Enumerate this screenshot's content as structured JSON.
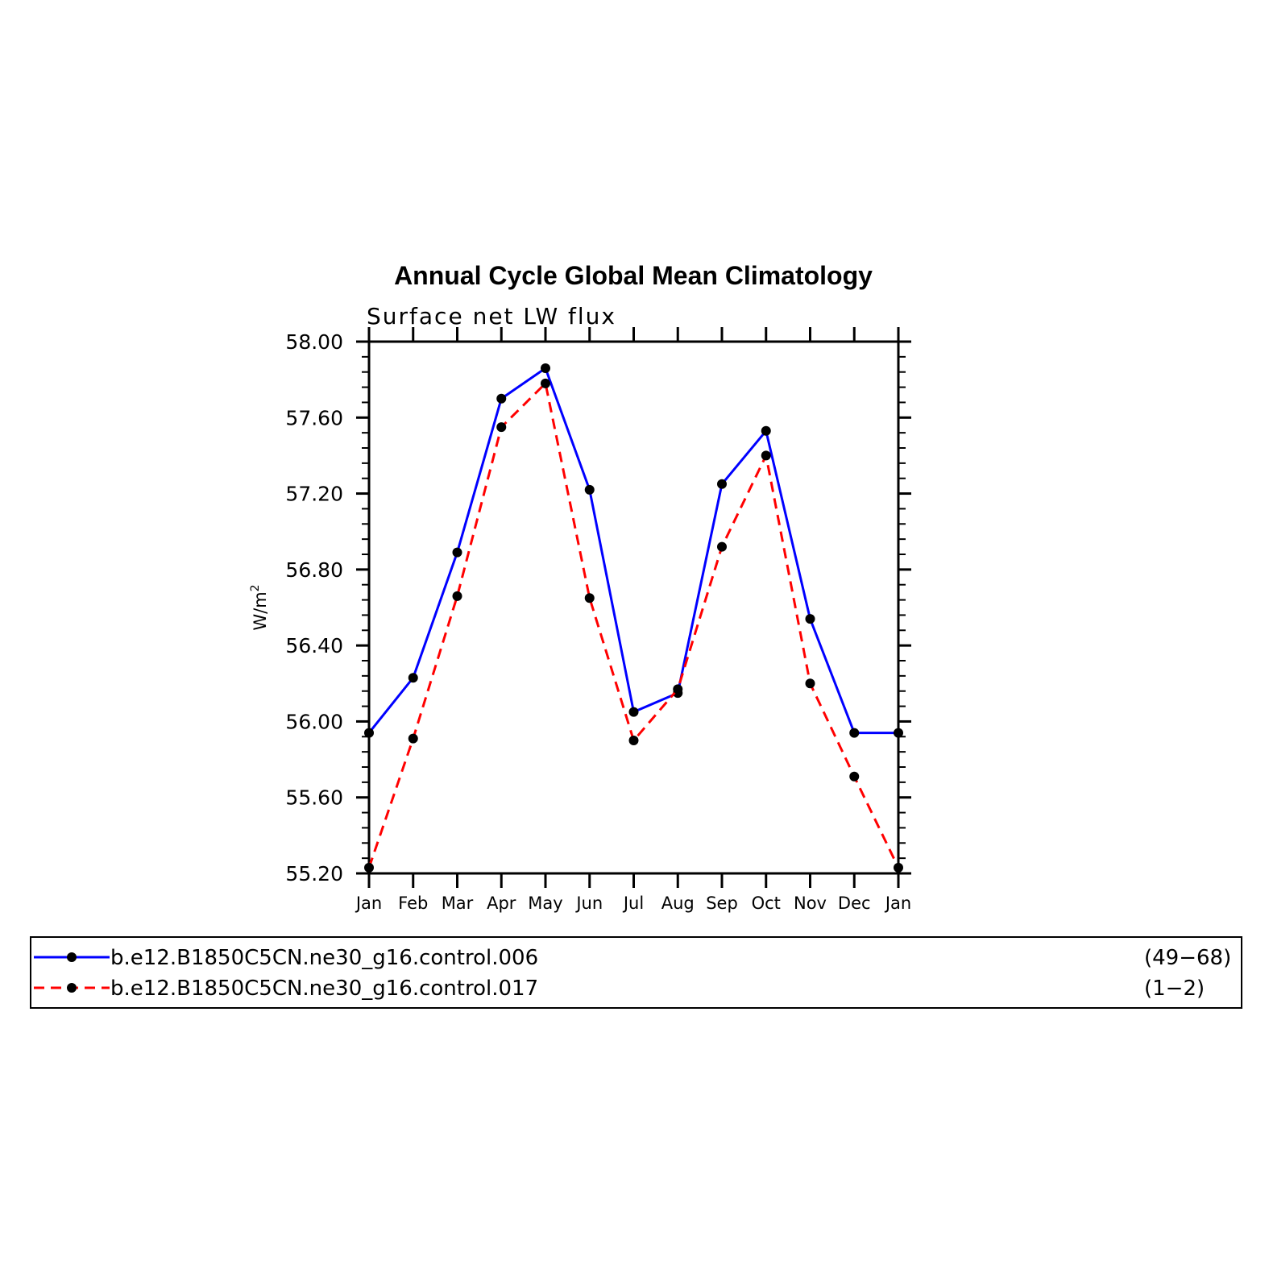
{
  "chart_data": {
    "type": "line",
    "title": "Annual Cycle Global Mean Climatology",
    "subtitle": "Surface net LW flux",
    "ylabel": "W/m",
    "ylabel_superscript": "2",
    "categories": [
      "Jan",
      "Feb",
      "Mar",
      "Apr",
      "May",
      "Jun",
      "Jul",
      "Aug",
      "Sep",
      "Oct",
      "Nov",
      "Dec",
      "Jan"
    ],
    "ylim": [
      55.2,
      58.0
    ],
    "yticks": [
      "55.20",
      "55.60",
      "56.00",
      "56.40",
      "56.80",
      "57.20",
      "57.60",
      "58.00"
    ],
    "ytick_values": [
      55.2,
      55.6,
      56.0,
      56.4,
      56.8,
      57.2,
      57.6,
      58.0
    ],
    "series": [
      {
        "name": "b.e12.B1850C5CN.ne30_g16.control.006",
        "years": "(49−68)",
        "color": "#0000ff",
        "dash": "solid",
        "values": [
          55.94,
          56.23,
          56.89,
          57.7,
          57.86,
          57.22,
          56.05,
          56.15,
          57.25,
          57.53,
          56.54,
          55.94,
          55.94
        ]
      },
      {
        "name": "b.e12.B1850C5CN.ne30_g16.control.017",
        "years": "(1−2)",
        "color": "#ff0000",
        "dash": "dashed",
        "values": [
          55.23,
          55.91,
          56.66,
          57.55,
          57.78,
          56.65,
          55.9,
          56.17,
          56.92,
          57.4,
          56.2,
          55.71,
          55.23
        ]
      }
    ],
    "marker_color": "#000000",
    "legend_position": "bottom"
  }
}
